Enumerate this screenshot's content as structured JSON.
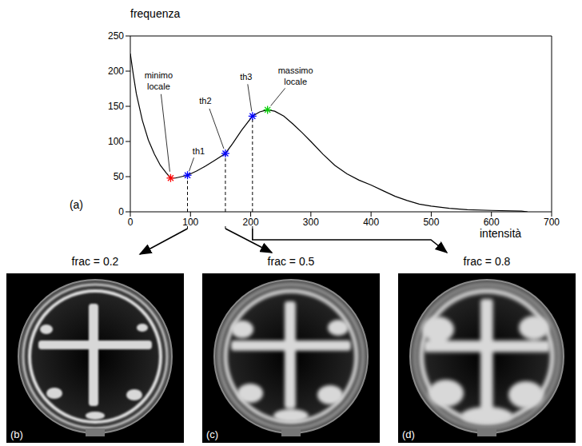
{
  "chart_data": {
    "type": "line",
    "panel": "(a)",
    "y_label": "frequenza",
    "x_label": "intensità",
    "color": "#000000",
    "grid": false,
    "xlim": [
      0,
      700
    ],
    "ylim": [
      0,
      250
    ],
    "xticks": [
      0,
      100,
      200,
      300,
      400,
      500,
      600,
      700
    ],
    "yticks": [
      0,
      50,
      100,
      150,
      200,
      250
    ],
    "x": [
      0,
      5,
      10,
      20,
      30,
      40,
      50,
      60,
      67,
      75,
      85,
      95,
      110,
      125,
      140,
      158,
      170,
      185,
      203,
      215,
      228,
      240,
      255,
      270,
      285,
      300,
      320,
      340,
      360,
      380,
      400,
      420,
      440,
      460,
      480,
      500,
      530,
      560,
      600,
      650,
      660
    ],
    "values": [
      225,
      195,
      168,
      130,
      102,
      82,
      66,
      55,
      48,
      48,
      50,
      52,
      58,
      65,
      73,
      83,
      97,
      116,
      136,
      142,
      145,
      143,
      136,
      125,
      113,
      100,
      82,
      66,
      54,
      45,
      38,
      30,
      22,
      16,
      11,
      8,
      5,
      3,
      2,
      1,
      0
    ],
    "points": [
      {
        "label": "minimo locale",
        "x": 67,
        "y": 48,
        "color": "#ff0000",
        "marker": "star"
      },
      {
        "label": "th1",
        "x": 95,
        "y": 52,
        "color": "#0000ff",
        "marker": "star"
      },
      {
        "label": "th2",
        "x": 158,
        "y": 83,
        "color": "#0000ff",
        "marker": "star"
      },
      {
        "label": "th3",
        "x": 203,
        "y": 136,
        "color": "#0000ff",
        "marker": "star"
      },
      {
        "label": "massimo locale",
        "x": 228,
        "y": 145,
        "color": "#00cc00",
        "marker": "star"
      }
    ]
  },
  "images": [
    {
      "panel": "(b)",
      "caption": "frac = 0.2",
      "threshold": "th1"
    },
    {
      "panel": "(c)",
      "caption": "frac = 0.5",
      "threshold": "th2"
    },
    {
      "panel": "(d)",
      "caption": "frac = 0.8",
      "threshold": "th3"
    }
  ]
}
